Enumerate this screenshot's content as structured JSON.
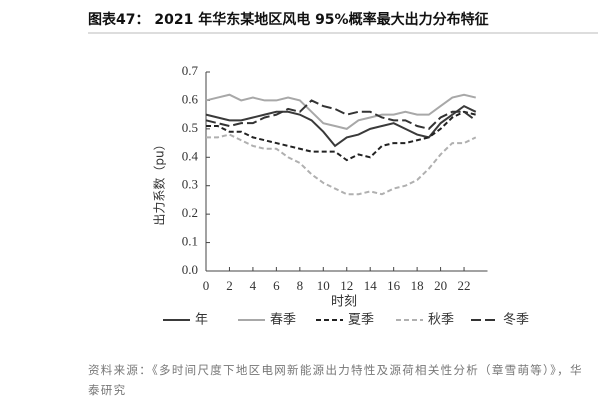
{
  "chart_data": {
    "type": "line",
    "title": "图表47： 2021 年华东某地区风电 95%概率最大出力分布特征",
    "x_label": "时刻",
    "y_label": "出力系数（pu）",
    "x": [
      0,
      1,
      2,
      3,
      4,
      5,
      6,
      7,
      8,
      9,
      10,
      11,
      12,
      13,
      14,
      15,
      16,
      17,
      18,
      19,
      20,
      21,
      22,
      23
    ],
    "xlim": [
      0,
      24
    ],
    "xticks": [
      0,
      2,
      4,
      6,
      8,
      10,
      12,
      14,
      16,
      18,
      20,
      22
    ],
    "ylim": [
      0,
      0.7
    ],
    "yticks": [
      {
        "value": 0,
        "label": "0.0"
      },
      0.1,
      0.2,
      0.3,
      0.4,
      0.5,
      0.6,
      0.7
    ],
    "grid": false,
    "series": [
      {
        "name": "年",
        "color": "#3a3a3a",
        "line_style": "solid",
        "values": [
          0.55,
          0.54,
          0.53,
          0.53,
          0.54,
          0.55,
          0.56,
          0.56,
          0.55,
          0.53,
          0.49,
          0.44,
          0.47,
          0.48,
          0.5,
          0.51,
          0.52,
          0.5,
          0.48,
          0.47,
          0.52,
          0.55,
          0.58,
          0.56
        ]
      },
      {
        "name": "春季",
        "color": "#a8a8a8",
        "line_style": "solid",
        "values": [
          0.6,
          0.61,
          0.62,
          0.6,
          0.61,
          0.6,
          0.6,
          0.61,
          0.6,
          0.56,
          0.52,
          0.51,
          0.5,
          0.53,
          0.54,
          0.55,
          0.55,
          0.56,
          0.55,
          0.55,
          0.58,
          0.61,
          0.62,
          0.61
        ]
      },
      {
        "name": "夏季",
        "color": "#222222",
        "line_style": "dashed",
        "values": [
          0.51,
          0.51,
          0.49,
          0.49,
          0.47,
          0.46,
          0.45,
          0.44,
          0.43,
          0.42,
          0.42,
          0.42,
          0.39,
          0.41,
          0.4,
          0.44,
          0.45,
          0.45,
          0.46,
          0.47,
          0.5,
          0.54,
          0.56,
          0.55
        ]
      },
      {
        "name": "秋季",
        "color": "#b0b0b0",
        "line_style": "dashed",
        "values": [
          0.47,
          0.47,
          0.48,
          0.46,
          0.44,
          0.43,
          0.43,
          0.4,
          0.38,
          0.34,
          0.31,
          0.29,
          0.27,
          0.27,
          0.28,
          0.27,
          0.29,
          0.3,
          0.32,
          0.36,
          0.41,
          0.45,
          0.45,
          0.47
        ]
      },
      {
        "name": "冬季",
        "color": "#333333",
        "line_style": "long-dashed",
        "values": [
          0.53,
          0.52,
          0.51,
          0.52,
          0.52,
          0.54,
          0.55,
          0.57,
          0.56,
          0.6,
          0.58,
          0.57,
          0.55,
          0.56,
          0.56,
          0.54,
          0.53,
          0.53,
          0.51,
          0.5,
          0.54,
          0.56,
          0.56,
          0.53
        ]
      }
    ],
    "source": "资料来源：《多时间尺度下地区电网新能源出力特性及源荷相关性分析（章雪萌等）》，华泰研究"
  }
}
